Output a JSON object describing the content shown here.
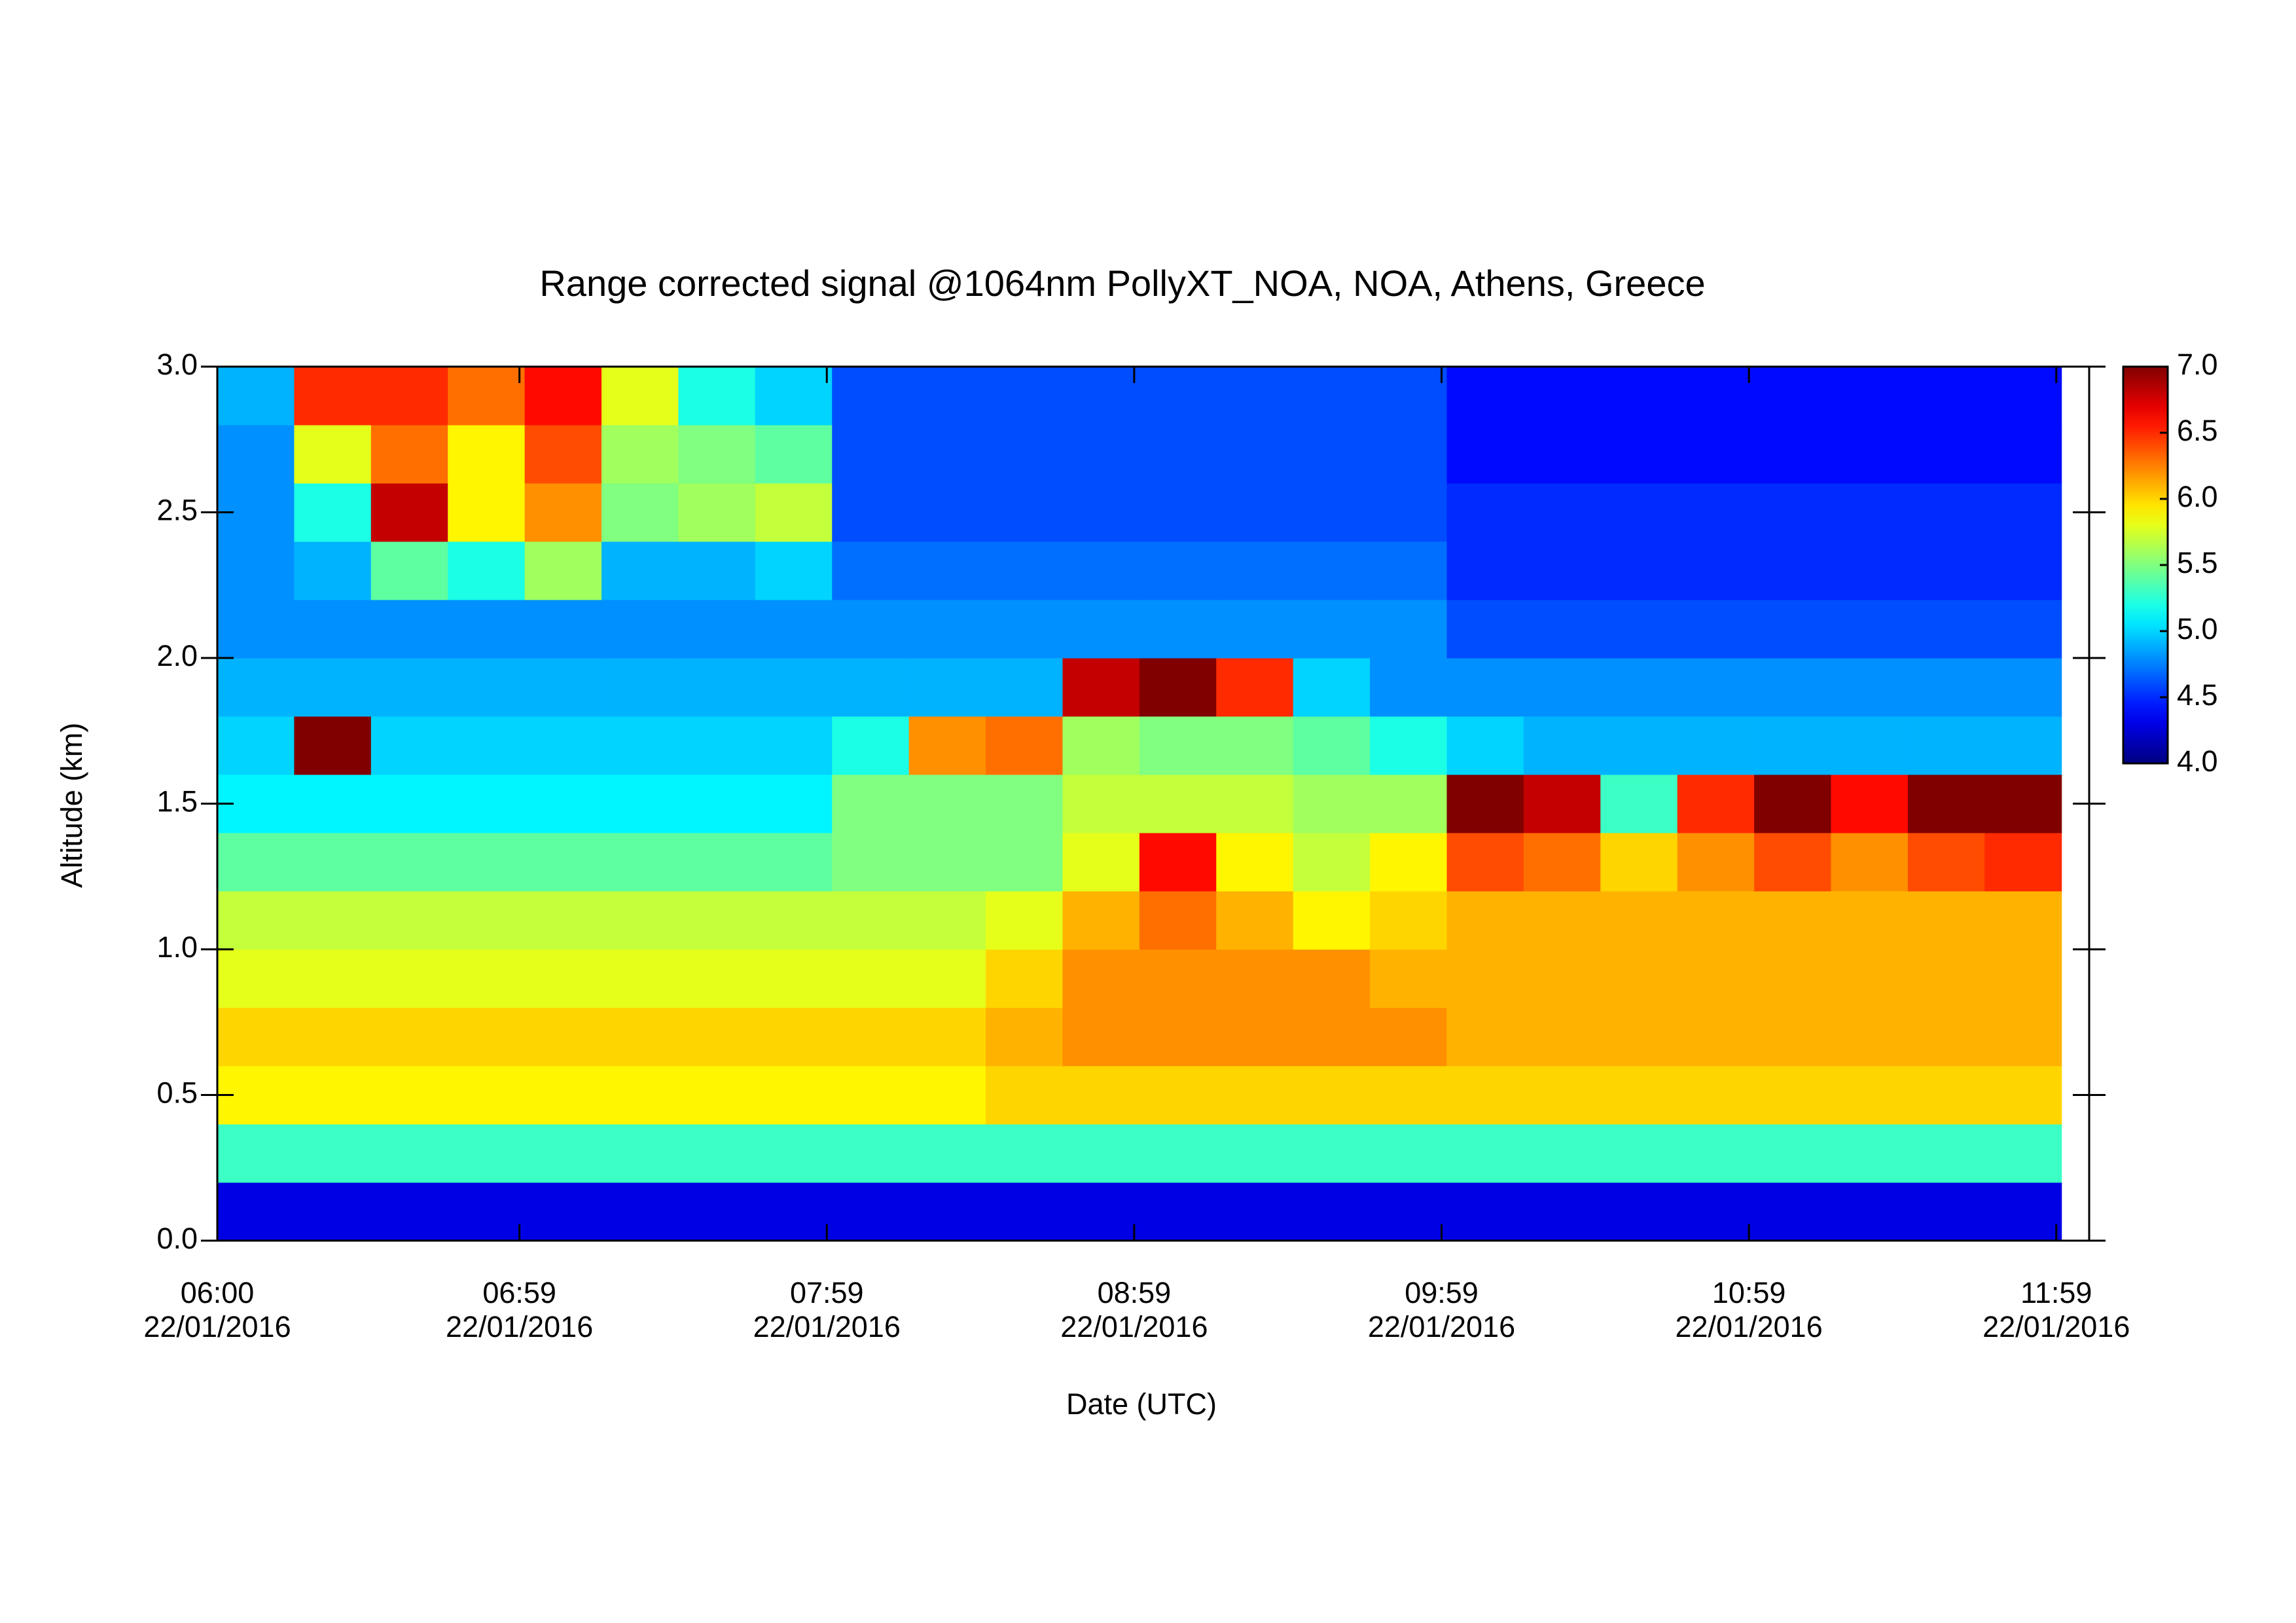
{
  "chart_data": {
    "type": "heatmap",
    "title": "Range corrected signal @1064nm  PollyXT_NOA, NOA, Athens, Greece",
    "xlabel": "Date (UTC)",
    "ylabel": "Altitude (km)",
    "xlim": [
      6,
      12.09
    ],
    "ylim": [
      0,
      3.0
    ],
    "zlim": [
      4.0,
      7.0
    ],
    "xticks": [
      {
        "value": 6,
        "label": "06:00\n22/01/2016"
      },
      {
        "value": 6.983,
        "label": "06:59\n22/01/2016"
      },
      {
        "value": 7.983,
        "label": "07:59\n22/01/2016"
      },
      {
        "value": 8.983,
        "label": "08:59\n22/01/2016"
      },
      {
        "value": 9.983,
        "label": "09:59\n22/01/2016"
      },
      {
        "value": 10.983,
        "label": "10:59\n22/01/2016"
      },
      {
        "value": 11.983,
        "label": "11:59\n22/01/2016"
      }
    ],
    "yticks": [
      {
        "value": 0,
        "label": "0.0"
      },
      0.5,
      {
        "value": 1,
        "label": "1.0"
      },
      1.5,
      {
        "value": 2,
        "label": "2.0"
      },
      2.5,
      {
        "value": 3,
        "label": "3.0"
      }
    ],
    "zticks": [
      {
        "value": 4,
        "label": "4.0"
      },
      4.5,
      {
        "value": 5,
        "label": "5.0"
      },
      5.5,
      {
        "value": 6,
        "label": "6.0"
      },
      6.5,
      {
        "value": 7,
        "label": "7.0"
      }
    ],
    "x": [
      6.125,
      6.375,
      6.625,
      6.875,
      7.125,
      7.375,
      7.625,
      7.875,
      8.125,
      8.375,
      8.625,
      8.875,
      9.125,
      9.375,
      9.625,
      9.875,
      10.125,
      10.375,
      10.625,
      10.875,
      11.125,
      11.375,
      11.625,
      11.875
    ],
    "y": [
      0.1,
      0.3,
      0.5,
      0.7,
      0.9,
      1.1,
      1.3,
      1.5,
      1.7,
      1.9,
      2.1,
      2.3,
      2.5,
      2.7,
      2.9
    ],
    "z": [
      [
        4.3,
        4.3,
        4.3,
        4.3,
        4.3,
        4.3,
        4.3,
        4.3,
        4.3,
        4.3,
        4.3,
        4.3,
        4.3,
        4.3,
        4.3,
        4.3,
        4.3,
        4.3,
        4.3,
        4.3,
        4.3,
        4.3,
        4.3,
        4.3
      ],
      [
        5.3,
        5.3,
        5.3,
        5.3,
        5.3,
        5.3,
        5.3,
        5.3,
        5.3,
        5.3,
        5.3,
        5.3,
        5.3,
        5.3,
        5.3,
        5.3,
        5.3,
        5.3,
        5.3,
        5.3,
        5.3,
        5.3,
        5.3,
        5.3
      ],
      [
        5.9,
        5.9,
        5.9,
        5.9,
        5.9,
        5.9,
        5.9,
        5.9,
        5.9,
        5.9,
        6.0,
        6.0,
        6.0,
        6.0,
        6.0,
        6.0,
        6.0,
        6.0,
        6.0,
        6.0,
        6.0,
        6.0,
        6.0,
        6.0
      ],
      [
        6.0,
        6.0,
        6.0,
        6.0,
        6.0,
        6.0,
        6.0,
        6.0,
        6.0,
        6.0,
        6.1,
        6.2,
        6.2,
        6.2,
        6.2,
        6.2,
        6.1,
        6.1,
        6.1,
        6.1,
        6.1,
        6.1,
        6.1,
        6.1
      ],
      [
        5.8,
        5.8,
        5.8,
        5.8,
        5.8,
        5.8,
        5.8,
        5.8,
        5.8,
        5.8,
        6.0,
        6.2,
        6.2,
        6.2,
        6.2,
        6.1,
        6.1,
        6.1,
        6.1,
        6.1,
        6.1,
        6.1,
        6.1,
        6.1
      ],
      [
        5.7,
        5.7,
        5.7,
        5.7,
        5.7,
        5.7,
        5.7,
        5.7,
        5.7,
        5.7,
        5.8,
        6.1,
        6.3,
        6.1,
        5.9,
        6.0,
        6.1,
        6.1,
        6.1,
        6.1,
        6.1,
        6.1,
        6.1,
        6.1
      ],
      [
        5.4,
        5.4,
        5.4,
        5.4,
        5.4,
        5.4,
        5.4,
        5.4,
        5.5,
        5.5,
        5.5,
        5.8,
        6.6,
        5.9,
        5.7,
        5.9,
        6.4,
        6.3,
        6.0,
        6.2,
        6.4,
        6.2,
        6.4,
        6.5
      ],
      [
        5.1,
        5.1,
        5.1,
        5.1,
        5.1,
        5.1,
        5.1,
        5.1,
        5.5,
        5.5,
        5.5,
        5.7,
        5.7,
        5.7,
        5.6,
        5.6,
        7.0,
        6.8,
        5.3,
        6.5,
        7.0,
        6.6,
        7.0,
        7.0
      ],
      [
        5.0,
        7.0,
        5.0,
        5.0,
        5.0,
        5.0,
        5.0,
        5.0,
        5.2,
        6.2,
        6.3,
        5.6,
        5.5,
        5.5,
        5.4,
        5.2,
        5.0,
        4.9,
        4.9,
        4.9,
        4.9,
        4.9,
        4.9,
        4.9
      ],
      [
        4.9,
        4.9,
        4.9,
        4.9,
        4.9,
        4.9,
        4.9,
        4.9,
        4.9,
        4.9,
        4.9,
        6.8,
        7.0,
        6.5,
        5.0,
        4.8,
        4.8,
        4.8,
        4.8,
        4.8,
        4.8,
        4.8,
        4.8,
        4.8
      ],
      [
        4.8,
        4.8,
        4.8,
        4.8,
        4.8,
        4.8,
        4.8,
        4.8,
        4.8,
        4.8,
        4.8,
        4.8,
        4.8,
        4.8,
        4.8,
        4.8,
        4.6,
        4.6,
        4.6,
        4.6,
        4.6,
        4.6,
        4.6,
        4.6
      ],
      [
        4.8,
        4.9,
        5.4,
        5.2,
        5.6,
        4.9,
        4.9,
        5.0,
        4.7,
        4.7,
        4.7,
        4.7,
        4.7,
        4.7,
        4.7,
        4.7,
        4.5,
        4.5,
        4.5,
        4.5,
        4.5,
        4.5,
        4.5,
        4.5
      ],
      [
        4.8,
        5.2,
        6.8,
        5.9,
        6.2,
        5.5,
        5.6,
        5.7,
        4.6,
        4.6,
        4.6,
        4.6,
        4.6,
        4.6,
        4.6,
        4.6,
        4.5,
        4.5,
        4.5,
        4.5,
        4.5,
        4.5,
        4.5,
        4.5
      ],
      [
        4.8,
        5.8,
        6.3,
        5.9,
        6.4,
        5.6,
        5.5,
        5.4,
        4.6,
        4.6,
        4.6,
        4.6,
        4.6,
        4.6,
        4.6,
        4.6,
        4.4,
        4.4,
        4.4,
        4.4,
        4.4,
        4.4,
        4.4,
        4.4
      ],
      [
        4.9,
        6.5,
        6.5,
        6.3,
        6.6,
        5.8,
        5.2,
        5.0,
        4.6,
        4.6,
        4.6,
        4.6,
        4.6,
        4.6,
        4.6,
        4.6,
        4.4,
        4.4,
        4.4,
        4.4,
        4.4,
        4.4,
        4.4,
        4.4
      ]
    ]
  }
}
